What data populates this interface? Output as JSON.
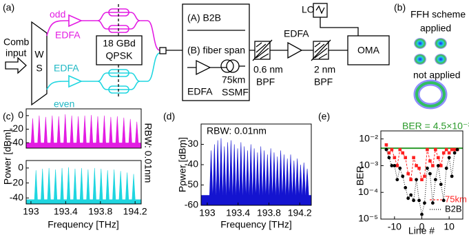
{
  "diagram": {
    "label": "(a)",
    "source": [
      "Comb",
      "input"
    ],
    "demux": [
      "W",
      "S"
    ],
    "odd": "odd",
    "even": "even",
    "amp_odd": "EDFA",
    "amp_even": "EDFA",
    "modulator": [
      "18 GBd",
      "QPSK"
    ],
    "case_a": "(A) B2B",
    "case_b": "(B) fiber span",
    "span_amp": "EDFA",
    "fiber": [
      "75km",
      "SSMF"
    ],
    "filter1": [
      "0.6 nm",
      "BPF"
    ],
    "amp": "EDFA",
    "filter2": [
      "2 nm",
      "BPF"
    ],
    "lo": "LO",
    "receiver": "OMA"
  },
  "constellations": {
    "label": "(b)",
    "applied": [
      "FFH scheme",
      "applied"
    ],
    "not_applied": "not applied"
  },
  "chart_data": [
    {
      "type": "spectrum",
      "label": "(c)",
      "y_label": "Power [dBm]",
      "annotation": "RBW: 0.01nm",
      "color": "#e31ce3",
      "x": [
        193.02,
        193.095,
        193.17,
        193.245,
        193.32,
        193.395,
        193.47,
        193.545,
        193.62,
        193.695,
        193.77,
        193.845,
        193.92,
        193.995,
        194.07,
        194.145,
        194.22
      ],
      "values": [
        -4,
        0,
        -2,
        0,
        -1,
        2,
        0,
        -1,
        0,
        1,
        -1,
        0,
        -2,
        -1,
        -3,
        -5,
        -9
      ],
      "floor": -40,
      "xlim": [
        192.945,
        194.27
      ],
      "ylim": [
        -48,
        10
      ],
      "yticks": [
        -40,
        -20,
        0
      ]
    },
    {
      "type": "spectrum",
      "x_label": "Frequency [THz]",
      "color": "#1fd6e0",
      "x": [
        193.058,
        193.133,
        193.208,
        193.283,
        193.358,
        193.433,
        193.508,
        193.583,
        193.658,
        193.733,
        193.808,
        193.883,
        193.958,
        194.033,
        194.108,
        194.183
      ],
      "values": [
        -3,
        -1,
        0,
        -2,
        0,
        1,
        -1,
        0,
        -2,
        0,
        -1,
        -3,
        -2,
        -4,
        -6,
        -8
      ],
      "floor": -42,
      "xlim": [
        192.945,
        194.27
      ],
      "ylim": [
        -48,
        10
      ],
      "yticks": [
        -40,
        -20,
        0
      ],
      "xticks": [
        193,
        193.4,
        193.8,
        194.2
      ]
    },
    {
      "type": "spectrum",
      "label": "(d)",
      "y_label": "Power [dBm]",
      "x_label": "Frequency [THz]",
      "annotation": "RBW: 0.01nm",
      "color": "#1414d0",
      "x": [
        193.05,
        193.093,
        193.136,
        193.179,
        193.222,
        193.265,
        193.308,
        193.351,
        193.394,
        193.437,
        193.48,
        193.523,
        193.566,
        193.609,
        193.652,
        193.695,
        193.738,
        193.781,
        193.824,
        193.867,
        193.91,
        193.953,
        193.996,
        194.039,
        194.082,
        194.125,
        194.168,
        194.211,
        194.254,
        194.297
      ],
      "values": [
        -33,
        -30,
        -28,
        -27,
        -31,
        -29,
        -28,
        -30,
        -32,
        -29,
        -31,
        -33,
        -30,
        -32,
        -34,
        -31,
        -33,
        -35,
        -32,
        -34,
        -36,
        -33,
        -35,
        -37,
        -35,
        -38,
        -37,
        -40,
        -39,
        -42
      ],
      "floor": -55,
      "xlim": [
        192.92,
        194.35
      ],
      "ylim": [
        -60,
        -20
      ],
      "yticks": [
        -60,
        -50,
        -40,
        -30
      ],
      "xticks": [
        193,
        193.4,
        193.8,
        194.2
      ]
    },
    {
      "type": "scatter_line",
      "label": "(e)",
      "y_label": "BER",
      "x_label": "Line #",
      "yscale": "log",
      "threshold": 0.0045,
      "threshold_color": "#2a9a2a",
      "threshold_label": "BER = 4.5×10⁻³",
      "x": [
        -13,
        -12,
        -11,
        -10,
        -9,
        -8,
        -7,
        -6,
        -5,
        -4,
        -3,
        -2,
        -1,
        0,
        1,
        2,
        3,
        4,
        5,
        6,
        7,
        8,
        9,
        10,
        11,
        12,
        13
      ],
      "series": [
        {
          "name": "75km",
          "color": "#ff2020",
          "marker": "square",
          "line_style": "dashed",
          "values": [
            0.006,
            0.003,
            0.004,
            0.002,
            0.001,
            0.004,
            0.003,
            0.002,
            0.0005,
            0.0003,
            0.002,
            0.001,
            0.0008,
            0.0003,
            0.0004,
            0.004,
            0.0015,
            0.001,
            0.004,
            0.002,
            0.001,
            0.003,
            0.004,
            0.003,
            0.004,
            0.004,
            0.004
          ]
        },
        {
          "name": "B2B",
          "color": "#000000",
          "marker": "circle",
          "line_style": "dotted",
          "values": [
            0.004,
            0.002,
            0.001,
            0.001,
            0.0003,
            0.0008,
            0.0004,
            0.00015,
            6e-05,
            8e-05,
            5e-05,
            0.0003,
            5e-05,
            1.5e-05,
            4e-05,
            0.0008,
            0.0005,
            4e-05,
            0.0003,
            0.001,
            0.0002,
            5e-05,
            0.0008,
            0.002,
            0.0004,
            0.003,
            0.004
          ]
        }
      ],
      "xlim": [
        -15,
        15
      ],
      "ylim": [
        1e-05,
        0.02
      ],
      "xticks": [
        -10,
        0,
        10
      ],
      "yticks": [
        {
          "value": 0.01,
          "label": "10⁻²"
        },
        {
          "value": 0.001,
          "label": "10⁻³"
        },
        {
          "value": 0.0001,
          "label": "10⁻⁴"
        },
        {
          "value": 1e-05,
          "label": "10⁻⁵"
        }
      ],
      "legend": "lower right"
    }
  ]
}
